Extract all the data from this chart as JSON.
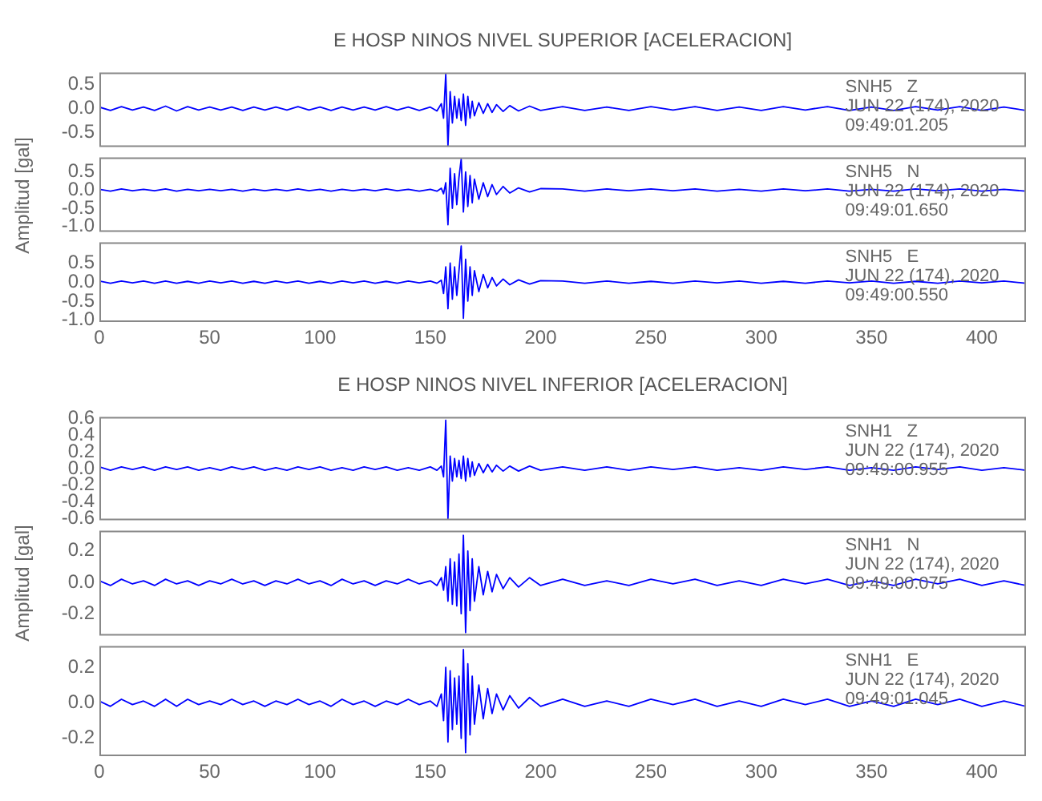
{
  "chart_data": [
    {
      "type": "line",
      "title": "E HOSP NINOS NIVEL SUPERIOR [ACELERACION]",
      "tick_labels": "y",
      "xlim": [
        0,
        420
      ],
      "xticks": [
        0,
        50,
        100,
        150,
        200,
        250,
        300,
        350,
        400
      ],
      "ylim": [
        -0.8,
        0.75
      ],
      "yticks": [
        -0.5,
        {
          "value": 0,
          "label": "0.0"
        },
        0.5
      ],
      "annotations": [
        "SNH5   Z",
        "JUN 22 (174), 2020",
        "09:49:01.205"
      ],
      "x": [
        0,
        5,
        10,
        15,
        20,
        25,
        30,
        35,
        40,
        45,
        50,
        55,
        60,
        65,
        70,
        75,
        80,
        85,
        90,
        95,
        100,
        105,
        110,
        115,
        120,
        125,
        130,
        135,
        140,
        145,
        150,
        153,
        155,
        156,
        157,
        158,
        159,
        160,
        161,
        162,
        163,
        164,
        165,
        166,
        167,
        168,
        169,
        170,
        172,
        174,
        176,
        178,
        180,
        183,
        186,
        190,
        195,
        200,
        210,
        220,
        230,
        240,
        250,
        260,
        270,
        280,
        290,
        300,
        310,
        320,
        330,
        340,
        350,
        360,
        370,
        380,
        390,
        400,
        410,
        420
      ],
      "series": [
        {
          "color": "#0000ff",
          "values": [
            0.03,
            -0.04,
            0.04,
            -0.03,
            0.03,
            -0.04,
            0.05,
            -0.05,
            0.04,
            -0.03,
            0.03,
            -0.03,
            0.03,
            -0.04,
            0.03,
            -0.03,
            0.03,
            -0.03,
            0.04,
            -0.03,
            0.03,
            -0.04,
            0.03,
            -0.03,
            0.03,
            -0.03,
            0.04,
            -0.03,
            0.03,
            -0.04,
            0.03,
            -0.05,
            0.1,
            -0.2,
            0.72,
            -0.78,
            0.35,
            -0.3,
            0.25,
            -0.2,
            0.2,
            -0.25,
            0.3,
            -0.35,
            0.25,
            -0.2,
            0.15,
            -0.15,
            0.12,
            -0.1,
            0.1,
            -0.08,
            0.08,
            -0.06,
            0.06,
            -0.05,
            0.05,
            -0.04,
            0.04,
            -0.04,
            0.03,
            -0.04,
            0.04,
            -0.03,
            0.04,
            -0.04,
            0.03,
            -0.04,
            0.04,
            -0.03,
            0.04,
            -0.04,
            0.03,
            -0.04,
            0.04,
            -0.03,
            0.04,
            -0.04,
            0.03,
            -0.04
          ]
        }
      ]
    },
    {
      "type": "line",
      "ylabel": "Amplitud [gal]",
      "tick_labels": "y",
      "xlim": [
        0,
        420
      ],
      "xticks": [
        0,
        50,
        100,
        150,
        200,
        250,
        300,
        350,
        400
      ],
      "ylim": [
        -1.15,
        0.9
      ],
      "yticks": [
        {
          "value": -1,
          "label": "-1.0"
        },
        -0.5,
        {
          "value": 0,
          "label": "0.0"
        },
        0.5
      ],
      "annotations": [
        "SNH5   N",
        "JUN 22 (174), 2020",
        "09:49:01.650"
      ],
      "x": [
        0,
        5,
        10,
        15,
        20,
        25,
        30,
        35,
        40,
        45,
        50,
        55,
        60,
        65,
        70,
        75,
        80,
        85,
        90,
        95,
        100,
        105,
        110,
        115,
        120,
        125,
        130,
        135,
        140,
        145,
        150,
        153,
        155,
        156,
        157,
        158,
        159,
        160,
        161,
        162,
        163,
        164,
        165,
        166,
        167,
        168,
        169,
        170,
        172,
        174,
        176,
        178,
        180,
        183,
        186,
        190,
        195,
        200,
        210,
        220,
        230,
        240,
        250,
        260,
        270,
        280,
        290,
        300,
        310,
        320,
        330,
        340,
        350,
        360,
        370,
        380,
        390,
        400,
        410,
        420
      ],
      "series": [
        {
          "color": "#0000ff",
          "values": [
            0.02,
            -0.03,
            0.03,
            -0.02,
            0.02,
            -0.02,
            0.03,
            -0.03,
            0.02,
            -0.02,
            0.02,
            -0.02,
            0.02,
            -0.03,
            0.02,
            -0.02,
            0.02,
            -0.02,
            0.03,
            -0.02,
            0.02,
            -0.03,
            0.02,
            -0.02,
            0.02,
            -0.02,
            0.03,
            -0.02,
            0.02,
            -0.03,
            0.02,
            -0.03,
            0.05,
            -0.1,
            0.2,
            -0.95,
            0.6,
            -0.5,
            0.45,
            -0.4,
            0.35,
            0.85,
            -0.6,
            0.5,
            -0.45,
            0.4,
            -0.35,
            0.3,
            -0.25,
            0.2,
            -0.18,
            0.15,
            -0.12,
            0.1,
            -0.08,
            0.06,
            -0.05,
            0.04,
            0.03,
            -0.03,
            0.03,
            -0.02,
            0.03,
            -0.02,
            0.03,
            -0.03,
            0.02,
            -0.03,
            0.03,
            -0.02,
            0.03,
            -0.03,
            0.02,
            -0.03,
            0.03,
            -0.02,
            0.03,
            -0.03,
            0.02,
            -0.03
          ]
        }
      ]
    },
    {
      "type": "line",
      "tick_labels": "xy",
      "xlim": [
        0,
        420
      ],
      "xticks": [
        0,
        50,
        100,
        150,
        200,
        250,
        300,
        350,
        400
      ],
      "ylim": [
        -1.05,
        1.05
      ],
      "yticks": [
        {
          "value": -1,
          "label": "-1.0"
        },
        -0.5,
        {
          "value": 0,
          "label": "0.0"
        },
        0.5,
        {
          "value": 1,
          "label": null
        }
      ],
      "annotations": [
        "SNH5   E",
        "JUN 22 (174), 2020",
        "09:49:00.550"
      ],
      "x": [
        0,
        5,
        10,
        15,
        20,
        25,
        30,
        35,
        40,
        45,
        50,
        55,
        60,
        65,
        70,
        75,
        80,
        85,
        90,
        95,
        100,
        105,
        110,
        115,
        120,
        125,
        130,
        135,
        140,
        145,
        150,
        153,
        155,
        156,
        157,
        158,
        159,
        160,
        161,
        162,
        163,
        164,
        165,
        166,
        167,
        168,
        169,
        170,
        172,
        174,
        176,
        178,
        180,
        183,
        186,
        190,
        195,
        200,
        210,
        220,
        230,
        240,
        250,
        260,
        270,
        280,
        290,
        300,
        310,
        320,
        330,
        340,
        350,
        360,
        370,
        380,
        390,
        400,
        410,
        420
      ],
      "series": [
        {
          "color": "#0000ff",
          "values": [
            0.03,
            -0.03,
            0.03,
            -0.02,
            0.03,
            -0.03,
            0.03,
            -0.03,
            0.02,
            -0.03,
            0.03,
            -0.02,
            0.03,
            -0.03,
            0.02,
            -0.03,
            0.03,
            -0.02,
            0.03,
            -0.03,
            0.02,
            -0.03,
            0.03,
            -0.02,
            0.03,
            -0.03,
            0.02,
            -0.03,
            0.03,
            -0.02,
            0.03,
            -0.03,
            0.05,
            -0.3,
            0.4,
            -0.7,
            0.5,
            -0.45,
            0.4,
            -0.35,
            0.3,
            0.95,
            -0.95,
            0.6,
            -0.5,
            0.4,
            -0.35,
            0.3,
            -0.25,
            0.2,
            -0.15,
            0.12,
            -0.1,
            0.08,
            -0.07,
            0.06,
            -0.05,
            0.04,
            0.03,
            -0.03,
            0.03,
            -0.03,
            0.02,
            -0.03,
            0.03,
            -0.02,
            0.03,
            -0.03,
            0.02,
            -0.03,
            0.03,
            -0.02,
            0.03,
            -0.03,
            0.02,
            -0.03,
            0.03,
            -0.02,
            0.03,
            -0.03
          ]
        }
      ]
    },
    {
      "type": "line",
      "title": "E HOSP NINOS NIVEL INFERIOR [ACELERACION]",
      "tick_labels": "y",
      "xlim": [
        0,
        420
      ],
      "xticks": [
        0,
        50,
        100,
        150,
        200,
        250,
        300,
        350,
        400
      ],
      "ylim": [
        -0.62,
        0.62
      ],
      "yticks": [
        -0.6,
        -0.4,
        -0.2,
        {
          "value": 0,
          "label": "0.0"
        },
        0.2,
        0.4,
        0.6
      ],
      "annotations": [
        "SNH1   Z",
        "JUN 22 (174), 2020",
        "09:49:00.955"
      ],
      "x": [
        0,
        5,
        10,
        15,
        20,
        25,
        30,
        35,
        40,
        45,
        50,
        55,
        60,
        65,
        70,
        75,
        80,
        85,
        90,
        95,
        100,
        105,
        110,
        115,
        120,
        125,
        130,
        135,
        140,
        145,
        150,
        153,
        155,
        156,
        157,
        158,
        159,
        160,
        161,
        162,
        163,
        164,
        165,
        166,
        167,
        168,
        169,
        170,
        172,
        174,
        176,
        178,
        180,
        183,
        186,
        190,
        195,
        200,
        210,
        220,
        230,
        240,
        250,
        260,
        270,
        280,
        290,
        300,
        310,
        320,
        330,
        340,
        350,
        360,
        370,
        380,
        390,
        400,
        410,
        420
      ],
      "series": [
        {
          "color": "#0000ff",
          "values": [
            0.02,
            -0.02,
            0.02,
            -0.01,
            0.02,
            -0.02,
            0.02,
            -0.01,
            0.02,
            -0.02,
            0.01,
            -0.02,
            0.02,
            -0.01,
            0.02,
            -0.02,
            0.01,
            -0.02,
            0.02,
            -0.01,
            0.02,
            -0.02,
            0.01,
            -0.02,
            0.02,
            -0.01,
            0.02,
            -0.02,
            0.01,
            -0.02,
            0.02,
            -0.02,
            0.03,
            -0.1,
            0.58,
            -0.6,
            0.15,
            -0.15,
            0.12,
            -0.1,
            0.1,
            -0.12,
            0.15,
            -0.15,
            0.12,
            -0.1,
            0.08,
            -0.08,
            0.06,
            -0.05,
            0.05,
            -0.04,
            0.04,
            -0.03,
            0.03,
            -0.03,
            0.03,
            -0.02,
            0.02,
            -0.02,
            0.02,
            -0.02,
            0.02,
            -0.01,
            0.02,
            -0.02,
            0.01,
            -0.02,
            0.02,
            -0.01,
            0.02,
            -0.02,
            0.01,
            -0.02,
            0.02,
            -0.01,
            0.02,
            -0.02,
            0.01,
            -0.02
          ]
        }
      ]
    },
    {
      "type": "line",
      "ylabel": "Amplitud [gal]",
      "tick_labels": "y",
      "xlim": [
        0,
        420
      ],
      "xticks": [
        0,
        50,
        100,
        150,
        200,
        250,
        300,
        350,
        400
      ],
      "ylim": [
        -0.34,
        0.33
      ],
      "yticks": [
        -0.2,
        {
          "value": 0,
          "label": "0.0"
        },
        0.2
      ],
      "annotations": [
        "SNH1   N",
        "JUN 22 (174), 2020",
        "09:49:00.075"
      ],
      "x": [
        0,
        5,
        10,
        15,
        20,
        25,
        30,
        35,
        40,
        45,
        50,
        55,
        60,
        65,
        70,
        75,
        80,
        85,
        90,
        95,
        100,
        105,
        110,
        115,
        120,
        125,
        130,
        135,
        140,
        145,
        150,
        153,
        155,
        156,
        157,
        158,
        159,
        160,
        161,
        162,
        163,
        164,
        165,
        166,
        167,
        168,
        169,
        170,
        172,
        174,
        176,
        178,
        180,
        183,
        186,
        190,
        195,
        200,
        210,
        220,
        230,
        240,
        250,
        260,
        270,
        280,
        290,
        300,
        310,
        320,
        330,
        340,
        350,
        360,
        370,
        380,
        390,
        400,
        410,
        420
      ],
      "series": [
        {
          "color": "#0000ff",
          "values": [
            0.01,
            -0.02,
            0.02,
            -0.01,
            0.01,
            -0.02,
            0.02,
            -0.01,
            0.01,
            -0.02,
            0.01,
            -0.01,
            0.02,
            -0.01,
            0.01,
            -0.02,
            0.01,
            -0.01,
            0.02,
            -0.01,
            0.01,
            -0.02,
            0.02,
            -0.01,
            0.01,
            -0.02,
            0.01,
            -0.01,
            0.02,
            -0.01,
            0.01,
            -0.02,
            0.03,
            -0.05,
            0.1,
            -0.12,
            0.15,
            -0.14,
            0.13,
            -0.15,
            0.18,
            -0.2,
            0.3,
            -0.32,
            0.2,
            -0.18,
            0.15,
            -0.12,
            0.1,
            -0.08,
            0.07,
            -0.06,
            0.05,
            -0.04,
            0.03,
            -0.03,
            0.03,
            -0.02,
            0.02,
            -0.02,
            0.01,
            -0.02,
            0.02,
            -0.01,
            0.02,
            -0.02,
            0.01,
            -0.02,
            0.02,
            -0.01,
            0.02,
            -0.02,
            0.01,
            -0.02,
            0.02,
            -0.01,
            0.02,
            -0.02,
            0.01,
            -0.02
          ]
        }
      ]
    },
    {
      "type": "line",
      "tick_labels": "xy",
      "xlim": [
        0,
        420
      ],
      "xticks": [
        0,
        50,
        100,
        150,
        200,
        250,
        300,
        350,
        400
      ],
      "ylim": [
        -0.3,
        0.32
      ],
      "yticks": [
        -0.2,
        {
          "value": 0,
          "label": "0.0"
        },
        0.2
      ],
      "annotations": [
        "SNH1   E",
        "JUN 22 (174), 2020",
        "09:49:01.045"
      ],
      "x": [
        0,
        5,
        10,
        15,
        20,
        25,
        30,
        35,
        40,
        45,
        50,
        55,
        60,
        65,
        70,
        75,
        80,
        85,
        90,
        95,
        100,
        105,
        110,
        115,
        120,
        125,
        130,
        135,
        140,
        145,
        150,
        153,
        155,
        156,
        157,
        158,
        159,
        160,
        161,
        162,
        163,
        164,
        165,
        166,
        167,
        168,
        169,
        170,
        172,
        174,
        176,
        178,
        180,
        183,
        186,
        190,
        195,
        200,
        210,
        220,
        230,
        240,
        250,
        260,
        270,
        280,
        290,
        300,
        310,
        320,
        330,
        340,
        350,
        360,
        370,
        380,
        390,
        400,
        410,
        420
      ],
      "series": [
        {
          "color": "#0000ff",
          "values": [
            0.01,
            -0.02,
            0.02,
            -0.01,
            0.01,
            -0.02,
            0.02,
            -0.02,
            0.02,
            -0.01,
            0.01,
            -0.01,
            0.02,
            -0.01,
            0.01,
            -0.02,
            0.01,
            -0.01,
            0.02,
            -0.01,
            0.01,
            -0.02,
            0.02,
            -0.01,
            0.01,
            -0.02,
            0.01,
            -0.01,
            0.02,
            -0.01,
            0.01,
            -0.02,
            0.05,
            -0.1,
            0.2,
            -0.22,
            0.18,
            -0.15,
            0.14,
            -0.12,
            0.15,
            -0.2,
            0.3,
            -0.28,
            0.22,
            -0.18,
            0.15,
            -0.12,
            0.1,
            -0.09,
            0.08,
            -0.06,
            0.05,
            -0.04,
            0.04,
            -0.03,
            0.03,
            -0.02,
            0.02,
            -0.02,
            0.01,
            -0.02,
            0.02,
            -0.01,
            0.02,
            -0.02,
            0.01,
            -0.02,
            0.02,
            -0.01,
            0.02,
            -0.02,
            0.01,
            -0.02,
            0.02,
            -0.01,
            0.02,
            -0.02,
            0.01,
            -0.02
          ]
        }
      ]
    }
  ]
}
